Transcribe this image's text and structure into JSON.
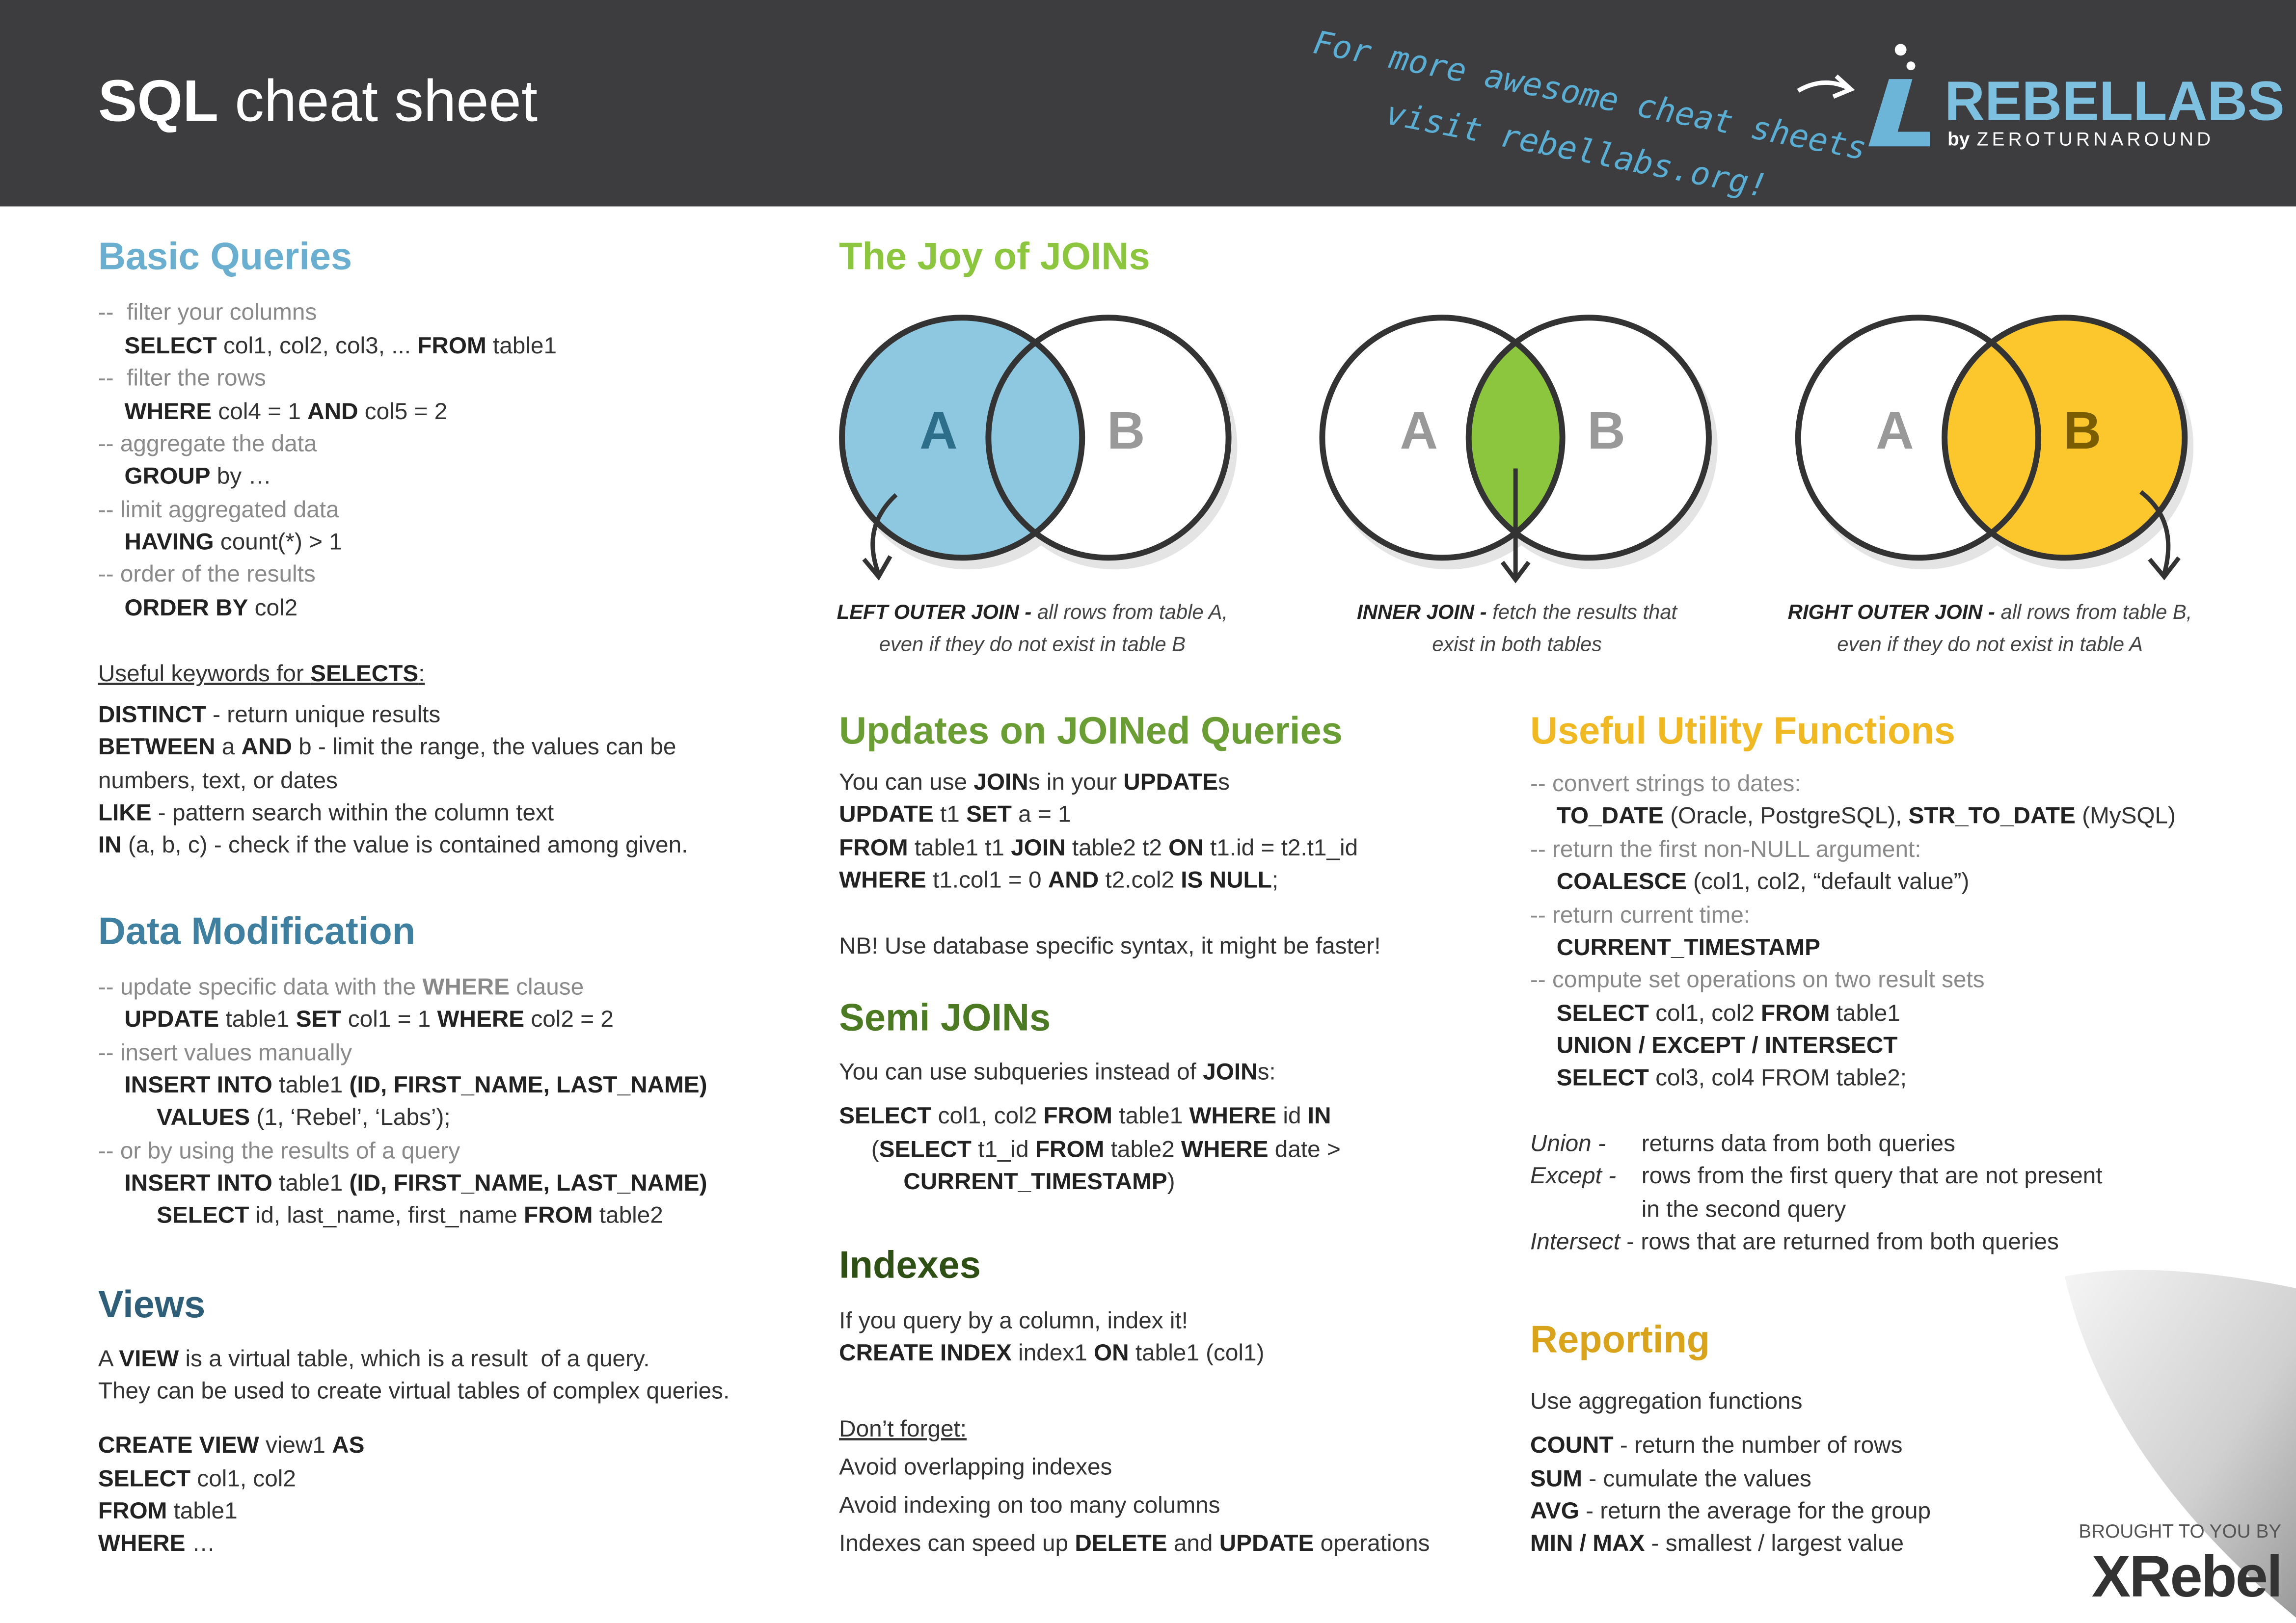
{
  "header": {
    "title": [
      {
        "b": "SQL"
      },
      " cheat sheet"
    ],
    "tagline": [
      "For more awesome cheat sheets",
      "visit rebellabs.org!"
    ],
    "logo": "REBELLABS",
    "logo_by": "by",
    "logo_company": "ZEROTURNAROUND"
  },
  "basic_queries": {
    "heading": "Basic Queries",
    "lines": [
      [
        "--  filter your columns"
      ],
      [
        {
          "b": "SELECT"
        },
        " col1, col2, col3, ... ",
        {
          "b": "FROM"
        },
        " table1"
      ],
      [
        "--  filter the rows"
      ],
      [
        {
          "b": "WHERE"
        },
        " col4 = 1 ",
        {
          "b": "AND"
        },
        " col5 = 2"
      ],
      [
        "-- aggregate the data"
      ],
      [
        {
          "b": "GROUP"
        },
        " by …"
      ],
      [
        "-- limit aggregated data"
      ],
      [
        {
          "b": "HAVING"
        },
        " count(*) > 1"
      ],
      [
        "-- order of the results"
      ],
      [
        {
          "b": "ORDER BY"
        },
        " col2"
      ],
      [
        "Useful keywords for ",
        {
          "b": "SELECTS"
        },
        ":"
      ],
      [
        {
          "b": "DISTINCT"
        },
        " - return unique results"
      ],
      [
        {
          "b": "BETWEEN"
        },
        " a ",
        {
          "b": "AND"
        },
        " b - limit the range, the values can be"
      ],
      [
        "numbers, text, or dates"
      ],
      [
        {
          "b": "LIKE"
        },
        " - pattern search within the column text"
      ],
      [
        {
          "b": "IN"
        },
        " (a, b, c) - check if the value is contained among given."
      ]
    ]
  },
  "data_modification": {
    "heading": "Data Modification",
    "lines": [
      [
        "-- update specific data with the ",
        {
          "b": "WHERE"
        },
        " clause"
      ],
      [
        {
          "b": "UPDATE"
        },
        " table1 ",
        {
          "b": "SET"
        },
        " col1 = 1 ",
        {
          "b": "WHERE"
        },
        " col2 = 2"
      ],
      [
        "-- insert values manually"
      ],
      [
        {
          "b": "INSERT INTO"
        },
        " table1 ",
        {
          "b": "(ID, FIRST_NAME, LAST_NAME)"
        }
      ],
      [
        {
          "b": "VALUES"
        },
        " (1, ‘Rebel’, ‘Labs’);"
      ],
      [
        "-- or by using the results of a query"
      ],
      [
        {
          "b": "INSERT INTO"
        },
        " table1 ",
        {
          "b": "(ID, FIRST_NAME, LAST_NAME)"
        }
      ],
      [
        {
          "b": "SELECT"
        },
        " id, last_name, first_name ",
        {
          "b": "FROM"
        },
        " table2"
      ]
    ]
  },
  "views": {
    "heading": "Views",
    "lines": [
      [
        "A ",
        {
          "b": "VIEW"
        },
        " is a virtual table, which is a result  of a query."
      ],
      [
        "They can be used to create virtual tables of complex queries."
      ],
      [
        {
          "b": "CREATE VIEW"
        },
        " view1 ",
        {
          "b": "AS"
        }
      ],
      [
        {
          "b": "SELECT"
        },
        " col1, col2"
      ],
      [
        {
          "b": "FROM"
        },
        " table1"
      ],
      [
        {
          "b": "WHERE"
        },
        " …"
      ]
    ]
  },
  "joins": {
    "heading": "The Joy of JOINs",
    "diagrams": [
      {
        "left_label": "A",
        "right_label": "B",
        "caption": [
          [
            {
              "b": "LEFT OUTER JOIN -"
            },
            " all rows from table A,"
          ],
          [
            "even if they do not exist in table B"
          ]
        ]
      },
      {
        "left_label": "A",
        "right_label": "B",
        "caption": [
          [
            {
              "b": "INNER JOIN -"
            },
            " fetch the results that"
          ],
          [
            "exist in both tables"
          ]
        ]
      },
      {
        "left_label": "A",
        "right_label": "B",
        "caption": [
          [
            {
              "b": "RIGHT OUTER JOIN -"
            },
            " all rows from table B,"
          ],
          [
            "even if they do not exist in table A"
          ]
        ]
      }
    ]
  },
  "updates_on_joins": {
    "heading": "Updates on JOINed Queries",
    "lines": [
      [
        "You can use ",
        {
          "b": "JOIN"
        },
        "s in your ",
        {
          "b": "UPDATE"
        },
        "s"
      ],
      [
        {
          "b": "UPDATE"
        },
        " t1 ",
        {
          "b": "SET"
        },
        " a = 1"
      ],
      [
        {
          "b": "FROM"
        },
        " table1 t1 ",
        {
          "b": "JOIN"
        },
        " table2 t2 ",
        {
          "b": "ON"
        },
        " t1.id = t2.t1_id"
      ],
      [
        {
          "b": "WHERE"
        },
        " t1.col1 = 0 ",
        {
          "b": "AND"
        },
        " t2.col2 ",
        {
          "b": "IS NULL"
        },
        ";"
      ],
      [
        "NB! Use database specific syntax, it might be faster!"
      ]
    ]
  },
  "semi_joins": {
    "heading": "Semi JOINs",
    "lines": [
      [
        "You can use subqueries instead of ",
        {
          "b": "JOIN"
        },
        "s:"
      ],
      [
        {
          "b": "SELECT"
        },
        " col1, col2 ",
        {
          "b": "FROM"
        },
        " table1 ",
        {
          "b": "WHERE"
        },
        " id ",
        {
          "b": "IN"
        }
      ],
      [
        "(",
        {
          "b": "SELECT"
        },
        " t1_id ",
        {
          "b": "FROM"
        },
        " table2 ",
        {
          "b": "WHERE"
        },
        " date >"
      ],
      [
        {
          "b": "CURRENT_TIMESTAMP"
        },
        ")"
      ]
    ]
  },
  "indexes": {
    "heading": "Indexes",
    "lines": [
      [
        "If you query by a column, index it!"
      ],
      [
        {
          "b": "CREATE INDEX"
        },
        " index1 ",
        {
          "b": "ON"
        },
        " table1 (col1)"
      ],
      [
        "Don’t forget:"
      ],
      [
        "Avoid overlapping indexes"
      ],
      [
        "Avoid indexing on too many columns"
      ],
      [
        "Indexes can speed up ",
        {
          "b": "DELETE"
        },
        " and ",
        {
          "b": "UPDATE"
        },
        " operations"
      ]
    ]
  },
  "utility_functions": {
    "heading": "Useful Utility Functions",
    "lines": [
      [
        "-- convert strings to dates:"
      ],
      [
        {
          "b": "TO_DATE"
        },
        " (Oracle, PostgreSQL), ",
        {
          "b": "STR_TO_DATE"
        },
        " (MySQL)"
      ],
      [
        "-- return the first non-NULL argument:"
      ],
      [
        {
          "b": "COALESCE"
        },
        " (col1, col2, “default value”)"
      ],
      [
        "-- return current time:"
      ],
      [
        {
          "b": "CURRENT_TIMESTAMP"
        }
      ],
      [
        "-- compute set operations on two result sets"
      ],
      [
        {
          "b": "SELECT"
        },
        " col1, col2 ",
        {
          "b": "FROM"
        },
        " table1"
      ],
      [
        {
          "b": "UNION / EXCEPT / INTERSECT"
        }
      ],
      [
        {
          "b": "SELECT"
        },
        " col3, col4 FROM table2;"
      ],
      [
        {
          "i": "Union -"
        },
        "returns data from both queries"
      ],
      [
        {
          "i": "Except -"
        },
        "rows from the first query that are not present"
      ],
      [
        "in the second query"
      ],
      [
        {
          "i": "Intersect"
        },
        " - rows that are returned from both queries"
      ]
    ]
  },
  "reporting": {
    "heading": "Reporting",
    "lines": [
      [
        "Use aggregation functions"
      ],
      [
        {
          "b": "COUNT"
        },
        " - return the number of rows"
      ],
      [
        {
          "b": "SUM"
        },
        " - cumulate the values"
      ],
      [
        {
          "b": "AVG"
        },
        " - return the average for the group"
      ],
      [
        {
          "b": "MIN / MAX"
        },
        " - smallest / largest value"
      ]
    ]
  },
  "footer": {
    "brought_by": "BROUGHT TO YOU BY",
    "brand": "XRebel"
  }
}
